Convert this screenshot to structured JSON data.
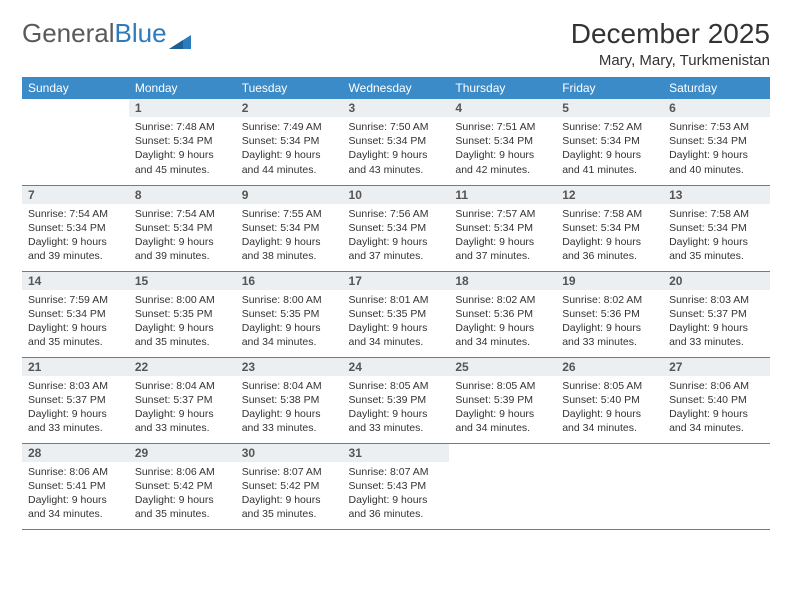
{
  "brand": {
    "part1": "General",
    "part2": "Blue"
  },
  "title": "December 2025",
  "location": "Mary, Mary, Turkmenistan",
  "colors": {
    "header_bg": "#3b8bc8",
    "header_text": "#ffffff",
    "daynum_bg": "#eceff1",
    "row_divider": "#3b8bc8",
    "brand_gray": "#5a5a5a",
    "brand_blue": "#2b7bbf",
    "text": "#333333",
    "page_bg": "#ffffff"
  },
  "day_names": [
    "Sunday",
    "Monday",
    "Tuesday",
    "Wednesday",
    "Thursday",
    "Friday",
    "Saturday"
  ],
  "weeks": [
    [
      {
        "n": "",
        "sr": "",
        "ss": "",
        "dl": ""
      },
      {
        "n": "1",
        "sr": "Sunrise: 7:48 AM",
        "ss": "Sunset: 5:34 PM",
        "dl": "Daylight: 9 hours and 45 minutes."
      },
      {
        "n": "2",
        "sr": "Sunrise: 7:49 AM",
        "ss": "Sunset: 5:34 PM",
        "dl": "Daylight: 9 hours and 44 minutes."
      },
      {
        "n": "3",
        "sr": "Sunrise: 7:50 AM",
        "ss": "Sunset: 5:34 PM",
        "dl": "Daylight: 9 hours and 43 minutes."
      },
      {
        "n": "4",
        "sr": "Sunrise: 7:51 AM",
        "ss": "Sunset: 5:34 PM",
        "dl": "Daylight: 9 hours and 42 minutes."
      },
      {
        "n": "5",
        "sr": "Sunrise: 7:52 AM",
        "ss": "Sunset: 5:34 PM",
        "dl": "Daylight: 9 hours and 41 minutes."
      },
      {
        "n": "6",
        "sr": "Sunrise: 7:53 AM",
        "ss": "Sunset: 5:34 PM",
        "dl": "Daylight: 9 hours and 40 minutes."
      }
    ],
    [
      {
        "n": "7",
        "sr": "Sunrise: 7:54 AM",
        "ss": "Sunset: 5:34 PM",
        "dl": "Daylight: 9 hours and 39 minutes."
      },
      {
        "n": "8",
        "sr": "Sunrise: 7:54 AM",
        "ss": "Sunset: 5:34 PM",
        "dl": "Daylight: 9 hours and 39 minutes."
      },
      {
        "n": "9",
        "sr": "Sunrise: 7:55 AM",
        "ss": "Sunset: 5:34 PM",
        "dl": "Daylight: 9 hours and 38 minutes."
      },
      {
        "n": "10",
        "sr": "Sunrise: 7:56 AM",
        "ss": "Sunset: 5:34 PM",
        "dl": "Daylight: 9 hours and 37 minutes."
      },
      {
        "n": "11",
        "sr": "Sunrise: 7:57 AM",
        "ss": "Sunset: 5:34 PM",
        "dl": "Daylight: 9 hours and 37 minutes."
      },
      {
        "n": "12",
        "sr": "Sunrise: 7:58 AM",
        "ss": "Sunset: 5:34 PM",
        "dl": "Daylight: 9 hours and 36 minutes."
      },
      {
        "n": "13",
        "sr": "Sunrise: 7:58 AM",
        "ss": "Sunset: 5:34 PM",
        "dl": "Daylight: 9 hours and 35 minutes."
      }
    ],
    [
      {
        "n": "14",
        "sr": "Sunrise: 7:59 AM",
        "ss": "Sunset: 5:34 PM",
        "dl": "Daylight: 9 hours and 35 minutes."
      },
      {
        "n": "15",
        "sr": "Sunrise: 8:00 AM",
        "ss": "Sunset: 5:35 PM",
        "dl": "Daylight: 9 hours and 35 minutes."
      },
      {
        "n": "16",
        "sr": "Sunrise: 8:00 AM",
        "ss": "Sunset: 5:35 PM",
        "dl": "Daylight: 9 hours and 34 minutes."
      },
      {
        "n": "17",
        "sr": "Sunrise: 8:01 AM",
        "ss": "Sunset: 5:35 PM",
        "dl": "Daylight: 9 hours and 34 minutes."
      },
      {
        "n": "18",
        "sr": "Sunrise: 8:02 AM",
        "ss": "Sunset: 5:36 PM",
        "dl": "Daylight: 9 hours and 34 minutes."
      },
      {
        "n": "19",
        "sr": "Sunrise: 8:02 AM",
        "ss": "Sunset: 5:36 PM",
        "dl": "Daylight: 9 hours and 33 minutes."
      },
      {
        "n": "20",
        "sr": "Sunrise: 8:03 AM",
        "ss": "Sunset: 5:37 PM",
        "dl": "Daylight: 9 hours and 33 minutes."
      }
    ],
    [
      {
        "n": "21",
        "sr": "Sunrise: 8:03 AM",
        "ss": "Sunset: 5:37 PM",
        "dl": "Daylight: 9 hours and 33 minutes."
      },
      {
        "n": "22",
        "sr": "Sunrise: 8:04 AM",
        "ss": "Sunset: 5:37 PM",
        "dl": "Daylight: 9 hours and 33 minutes."
      },
      {
        "n": "23",
        "sr": "Sunrise: 8:04 AM",
        "ss": "Sunset: 5:38 PM",
        "dl": "Daylight: 9 hours and 33 minutes."
      },
      {
        "n": "24",
        "sr": "Sunrise: 8:05 AM",
        "ss": "Sunset: 5:39 PM",
        "dl": "Daylight: 9 hours and 33 minutes."
      },
      {
        "n": "25",
        "sr": "Sunrise: 8:05 AM",
        "ss": "Sunset: 5:39 PM",
        "dl": "Daylight: 9 hours and 34 minutes."
      },
      {
        "n": "26",
        "sr": "Sunrise: 8:05 AM",
        "ss": "Sunset: 5:40 PM",
        "dl": "Daylight: 9 hours and 34 minutes."
      },
      {
        "n": "27",
        "sr": "Sunrise: 8:06 AM",
        "ss": "Sunset: 5:40 PM",
        "dl": "Daylight: 9 hours and 34 minutes."
      }
    ],
    [
      {
        "n": "28",
        "sr": "Sunrise: 8:06 AM",
        "ss": "Sunset: 5:41 PM",
        "dl": "Daylight: 9 hours and 34 minutes."
      },
      {
        "n": "29",
        "sr": "Sunrise: 8:06 AM",
        "ss": "Sunset: 5:42 PM",
        "dl": "Daylight: 9 hours and 35 minutes."
      },
      {
        "n": "30",
        "sr": "Sunrise: 8:07 AM",
        "ss": "Sunset: 5:42 PM",
        "dl": "Daylight: 9 hours and 35 minutes."
      },
      {
        "n": "31",
        "sr": "Sunrise: 8:07 AM",
        "ss": "Sunset: 5:43 PM",
        "dl": "Daylight: 9 hours and 36 minutes."
      },
      {
        "n": "",
        "sr": "",
        "ss": "",
        "dl": ""
      },
      {
        "n": "",
        "sr": "",
        "ss": "",
        "dl": ""
      },
      {
        "n": "",
        "sr": "",
        "ss": "",
        "dl": ""
      }
    ]
  ]
}
